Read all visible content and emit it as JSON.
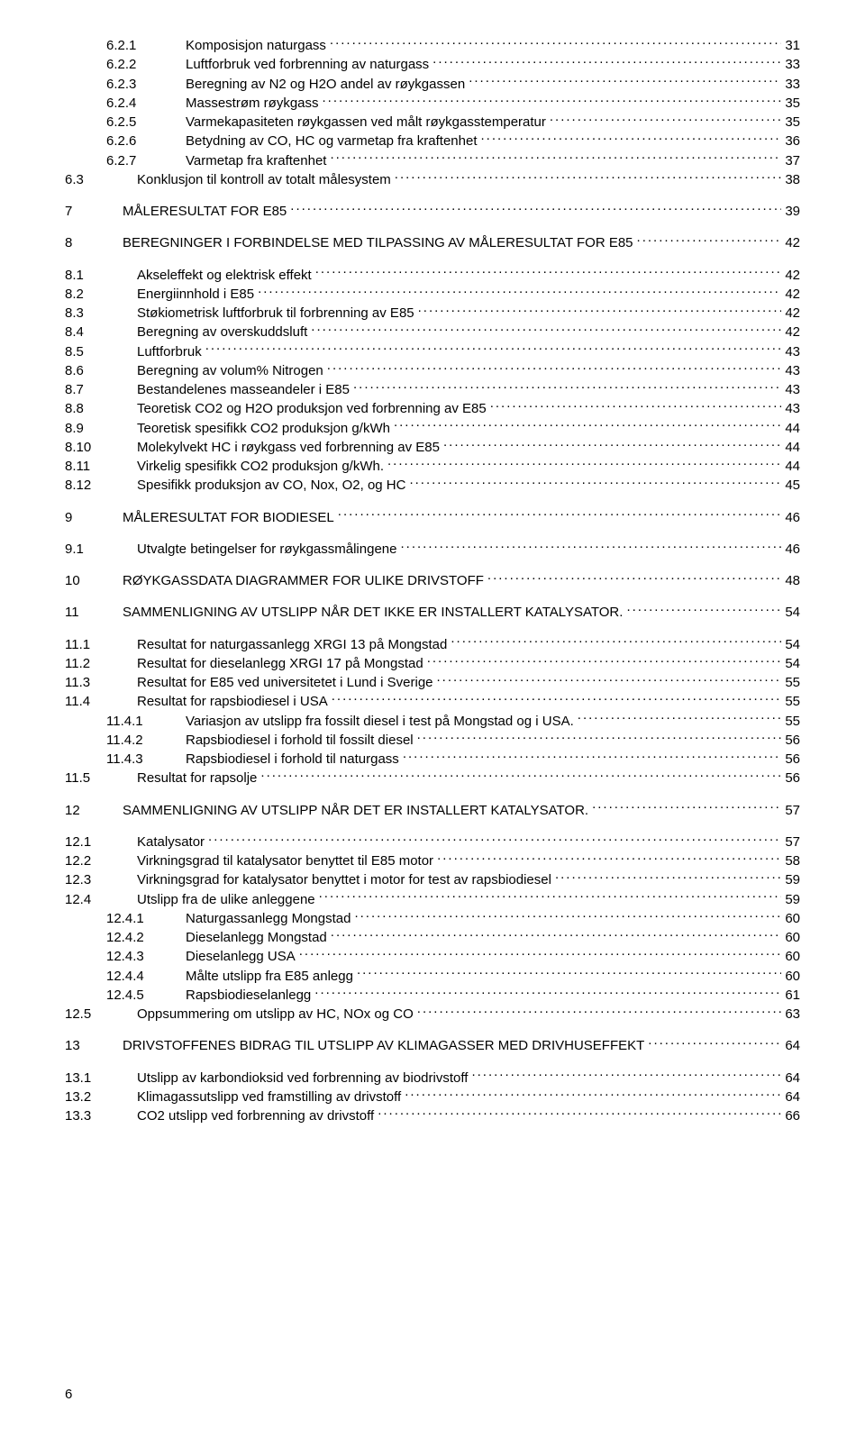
{
  "page_footer": "6",
  "typography": {
    "font_family": "Arial",
    "font_size_pt": 11,
    "color": "#000000",
    "background": "#ffffff",
    "dot_leader_color": "#000000"
  },
  "toc": [
    {
      "level": 2,
      "num": "6.2.1",
      "title": "Komposisjon naturgass",
      "page": "31",
      "indent": 2
    },
    {
      "level": 2,
      "num": "6.2.2",
      "title": "Luftforbruk ved forbrenning av naturgass",
      "page": "33",
      "indent": 2
    },
    {
      "level": 2,
      "num": "6.2.3",
      "title": "Beregning av N2 og H2O andel av røykgassen",
      "page": "33",
      "indent": 2
    },
    {
      "level": 2,
      "num": "6.2.4",
      "title": "Massestrøm røykgass",
      "page": "35",
      "indent": 2
    },
    {
      "level": 2,
      "num": "6.2.5",
      "title": "Varmekapasiteten røykgassen ved målt røykgasstemperatur",
      "page": "35",
      "indent": 2
    },
    {
      "level": 2,
      "num": "6.2.6",
      "title": "Betydning av CO, HC og varmetap fra kraftenhet",
      "page": "36",
      "indent": 2
    },
    {
      "level": 2,
      "num": "6.2.7",
      "title": "Varmetap fra kraftenhet",
      "page": "37",
      "indent": 2
    },
    {
      "level": 1,
      "num": "6.3",
      "title": "Konklusjon til kontroll av totalt målesystem",
      "page": "38",
      "indent": 0
    },
    {
      "spacer": true
    },
    {
      "level": 0,
      "num": "7",
      "title": "MÅLERESULTAT FOR E85",
      "page": "39",
      "indent": 0
    },
    {
      "spacer": true
    },
    {
      "level": 0,
      "num": "8",
      "title": "BEREGNINGER I FORBINDELSE MED TILPASSING AV MÅLERESULTAT FOR E85",
      "page": "42",
      "indent": 0
    },
    {
      "spacer": true
    },
    {
      "level": 1,
      "num": "8.1",
      "title": "Akseleffekt og elektrisk effekt",
      "page": "42",
      "indent": 0
    },
    {
      "level": 1,
      "num": "8.2",
      "title": "Energiinnhold i E85",
      "page": "42",
      "indent": 0
    },
    {
      "level": 1,
      "num": "8.3",
      "title": "Støkiometrisk luftforbruk til forbrenning av E85",
      "page": "42",
      "indent": 0
    },
    {
      "level": 1,
      "num": "8.4",
      "title": "Beregning av overskuddsluft",
      "page": "42",
      "indent": 0
    },
    {
      "level": 1,
      "num": "8.5",
      "title": "Luftforbruk",
      "page": "43",
      "indent": 0
    },
    {
      "level": 1,
      "num": "8.6",
      "title": "Beregning av volum% Nitrogen",
      "page": "43",
      "indent": 0
    },
    {
      "level": 1,
      "num": "8.7",
      "title": "Bestandelenes masseandeler i E85",
      "page": "43",
      "indent": 0
    },
    {
      "level": 1,
      "num": "8.8",
      "title": "Teoretisk CO2 og H2O produksjon ved forbrenning av E85",
      "page": "43",
      "indent": 0
    },
    {
      "level": 1,
      "num": "8.9",
      "title": "Teoretisk spesifikk CO2 produksjon g/kWh",
      "page": "44",
      "indent": 0
    },
    {
      "level": 1,
      "num": "8.10",
      "title": "Molekylvekt HC i røykgass ved forbrenning av E85",
      "page": "44",
      "indent": 0
    },
    {
      "level": 1,
      "num": "8.11",
      "title": "Virkelig spesifikk CO2 produksjon g/kWh.",
      "page": "44",
      "indent": 0
    },
    {
      "level": 1,
      "num": "8.12",
      "title": "Spesifikk produksjon av CO, Nox, O2, og HC",
      "page": "45",
      "indent": 0
    },
    {
      "spacer": true
    },
    {
      "level": 0,
      "num": "9",
      "title": "MÅLERESULTAT FOR BIODIESEL",
      "page": "46",
      "indent": 0
    },
    {
      "spacer": true
    },
    {
      "level": 1,
      "num": "9.1",
      "title": "Utvalgte betingelser for røykgassmålingene",
      "page": "46",
      "indent": 0
    },
    {
      "spacer": true
    },
    {
      "level": 0,
      "num": "10",
      "title": "RØYKGASSDATA DIAGRAMMER FOR ULIKE DRIVSTOFF",
      "page": "48",
      "indent": 0
    },
    {
      "spacer": true
    },
    {
      "level": 0,
      "num": "11",
      "title": "SAMMENLIGNING AV UTSLIPP NÅR DET IKKE ER INSTALLERT KATALYSATOR.",
      "page": "54",
      "indent": 0
    },
    {
      "spacer": true
    },
    {
      "level": 1,
      "num": "11.1",
      "title": "Resultat for naturgassanlegg XRGI 13 på Mongstad",
      "page": "54",
      "indent": 0
    },
    {
      "level": 1,
      "num": "11.2",
      "title": "Resultat for dieselanlegg XRGI 17 på Mongstad",
      "page": "54",
      "indent": 0
    },
    {
      "level": 1,
      "num": "11.3",
      "title": "Resultat for E85 ved universitetet i Lund i Sverige",
      "page": "55",
      "indent": 0
    },
    {
      "level": 1,
      "num": "11.4",
      "title": "Resultat for rapsbiodiesel i USA",
      "page": "55",
      "indent": 0
    },
    {
      "level": 2,
      "num": "11.4.1",
      "title": "Variasjon av utslipp fra fossilt diesel i test på Mongstad og i USA.",
      "page": "55",
      "indent": 2
    },
    {
      "level": 2,
      "num": "11.4.2",
      "title": "Rapsbiodiesel i forhold til fossilt diesel",
      "page": "56",
      "indent": 2
    },
    {
      "level": 2,
      "num": "11.4.3",
      "title": "Rapsbiodiesel i forhold til naturgass",
      "page": "56",
      "indent": 2
    },
    {
      "level": 1,
      "num": "11.5",
      "title": "Resultat for rapsolje",
      "page": "56",
      "indent": 0
    },
    {
      "spacer": true
    },
    {
      "level": 0,
      "num": "12",
      "title": "SAMMENLIGNING AV UTSLIPP NÅR DET ER INSTALLERT KATALYSATOR.",
      "page": "57",
      "indent": 0
    },
    {
      "spacer": true
    },
    {
      "level": 1,
      "num": "12.1",
      "title": "Katalysator",
      "page": "57",
      "indent": 0
    },
    {
      "level": 1,
      "num": "12.2",
      "title": "Virkningsgrad til katalysator benyttet til E85 motor",
      "page": "58",
      "indent": 0
    },
    {
      "level": 1,
      "num": "12.3",
      "title": "Virkningsgrad for katalysator benyttet i motor for test av rapsbiodiesel",
      "page": "59",
      "indent": 0
    },
    {
      "level": 1,
      "num": "12.4",
      "title": "Utslipp fra de ulike anleggene",
      "page": "59",
      "indent": 0
    },
    {
      "level": 2,
      "num": "12.4.1",
      "title": "Naturgassanlegg Mongstad",
      "page": "60",
      "indent": 2
    },
    {
      "level": 2,
      "num": "12.4.2",
      "title": "Dieselanlegg Mongstad",
      "page": "60",
      "indent": 2
    },
    {
      "level": 2,
      "num": "12.4.3",
      "title": "Dieselanlegg USA",
      "page": "60",
      "indent": 2
    },
    {
      "level": 2,
      "num": "12.4.4",
      "title": "Målte utslipp fra E85 anlegg",
      "page": "60",
      "indent": 2
    },
    {
      "level": 2,
      "num": "12.4.5",
      "title": "Rapsbiodieselanlegg",
      "page": "61",
      "indent": 2
    },
    {
      "level": 1,
      "num": "12.5",
      "title": "Oppsummering om utslipp av HC, NOx og CO",
      "page": "63",
      "indent": 0
    },
    {
      "spacer": true
    },
    {
      "level": 0,
      "num": "13",
      "title": "DRIVSTOFFENES BIDRAG TIL UTSLIPP AV KLIMAGASSER MED DRIVHUSEFFEKT",
      "page": "64",
      "indent": 0
    },
    {
      "spacer": true
    },
    {
      "level": 1,
      "num": "13.1",
      "title": "Utslipp av karbondioksid ved forbrenning av biodrivstoff",
      "page": "64",
      "indent": 0
    },
    {
      "level": 1,
      "num": "13.2",
      "title": "Klimagassutslipp ved framstilling av drivstoff",
      "page": "64",
      "indent": 0
    },
    {
      "level": 1,
      "num": "13.3",
      "title": "CO2 utslipp ved forbrenning av drivstoff",
      "page": "66",
      "indent": 0
    }
  ]
}
